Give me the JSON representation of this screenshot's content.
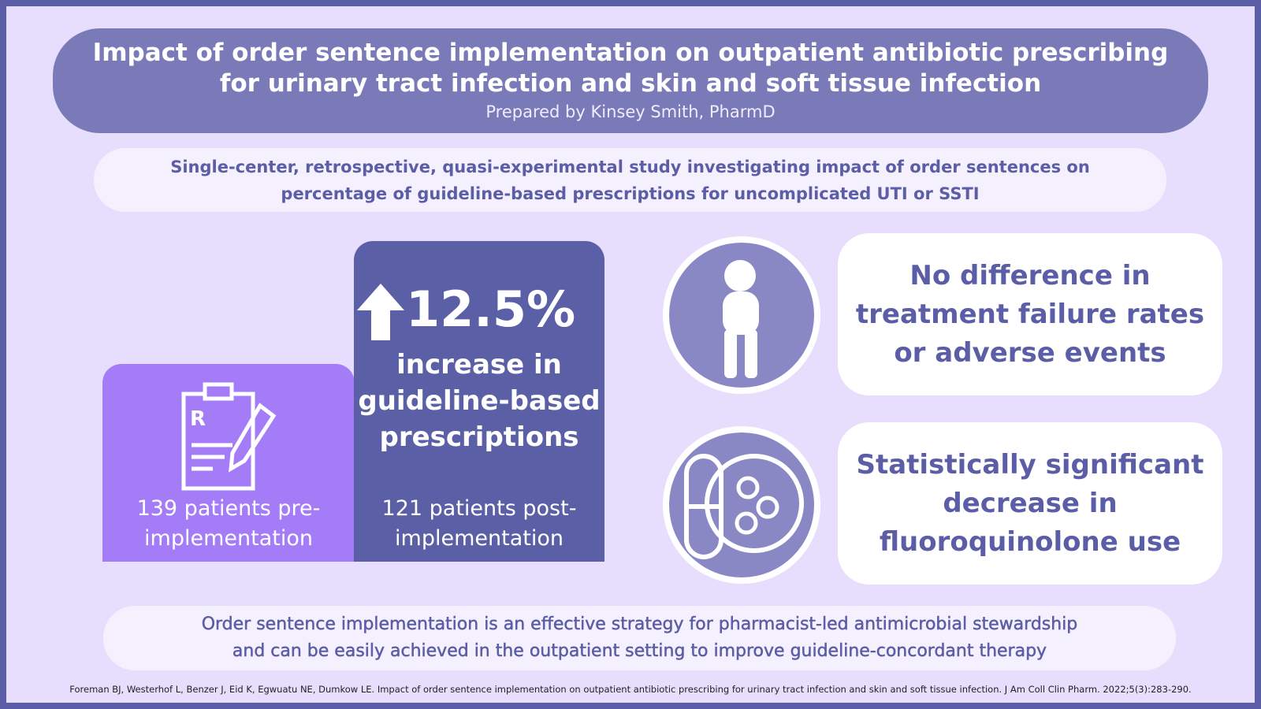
{
  "header": {
    "title": [
      "Impact of order sentence implementation on outpatient antibiotic prescribing",
      "for urinary tract infection and skin and soft tissue infection"
    ],
    "subtitle": "Prepared by Kinsey Smith, PharmD"
  },
  "study_summary": [
    "Single-center, retrospective, quasi-experimental study investigating impact of order sentences on",
    "percentage of guideline-based prescriptions for uncomplicated UTI or SSTI"
  ],
  "groups": {
    "pre": [
      "139 patients pre-",
      "implementation"
    ],
    "post": [
      "121 patients post-",
      "implementation"
    ]
  },
  "result": {
    "value": "12.5%",
    "text": [
      "increase in",
      "guideline-based",
      "prescriptions"
    ]
  },
  "outcomes": [
    [
      "No difference in",
      "treatment failure rates",
      "or adverse events"
    ],
    [
      "Statistically significant",
      "decrease in",
      "fluoroquinolone use"
    ]
  ],
  "conclusion": [
    "Order sentence implementation is an effective strategy for pharmacist-led antimicrobial stewardship",
    "and can be easily achieved in the outpatient setting to improve guideline-concordant therapy"
  ],
  "citation": "Foreman BJ, Westerhof L, Benzer J, Eid K, Egwuatu NE, Dumkow LE. Impact of order sentence implementation on outpatient antibiotic prescribing for urinary tract infection and skin and soft tissue infection. J Am Coll Clin Pharm. 2022;5(3):283-290."
}
